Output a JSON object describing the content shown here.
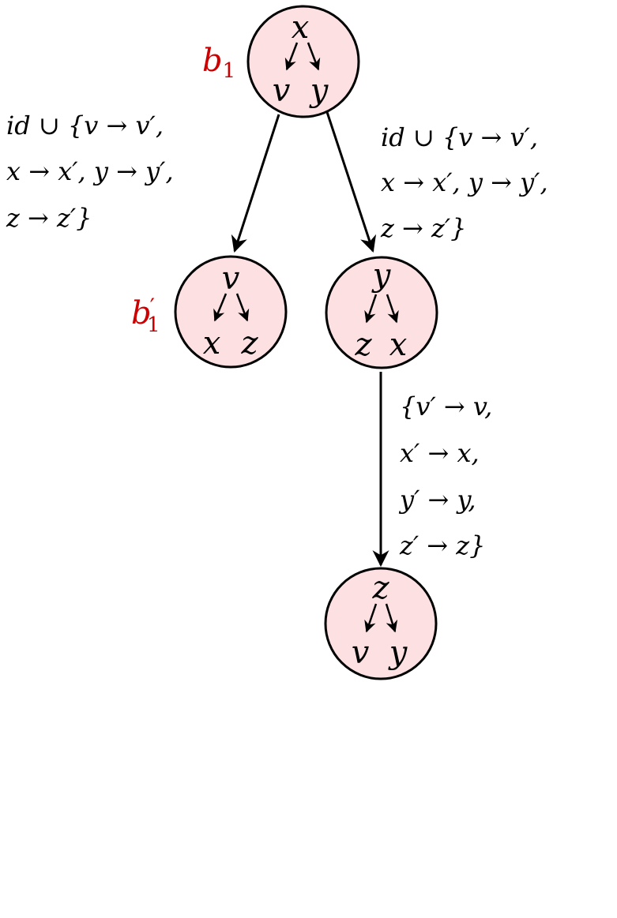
{
  "colors": {
    "node_fill": "#fde0e1",
    "node_stroke": "#000000",
    "label_red": "#cc0000"
  },
  "nodes": {
    "top": {
      "label_name": "b",
      "label_sub": "1",
      "label_prime": "",
      "root": "x",
      "left": "v",
      "right": "y"
    },
    "left": {
      "label_name": "b",
      "label_sub": "1",
      "label_prime": "′",
      "root": "v",
      "left": "x",
      "right": "z"
    },
    "right": {
      "root": "y",
      "left": "z",
      "right": "x"
    },
    "bottom": {
      "root": "z",
      "left": "v",
      "right": "y"
    }
  },
  "edges": {
    "top_to_left": [
      "id ∪ {v → v′,",
      "x → x′, y → y′,",
      "z → z′}"
    ],
    "top_to_right": [
      "id ∪ {v → v′,",
      "x → x′, y → y′,",
      "z → z′}"
    ],
    "right_to_bottom": [
      "{v′ → v,",
      "x′ → x,",
      "y′ → y,",
      "z′ → z}"
    ]
  }
}
